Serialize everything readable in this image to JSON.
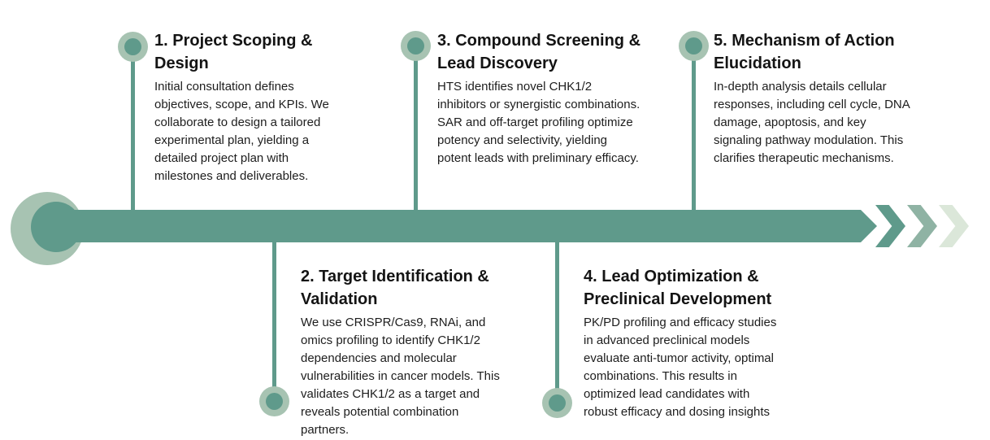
{
  "colors": {
    "accent_dark": "#5f9a8b",
    "accent_light": "#a7c3b2",
    "chevron_mid": "#8fb3a4",
    "chevron_pale": "#dbe7d9",
    "text": "#1d1d1d"
  },
  "steps": [
    {
      "id": 1,
      "position": "above-timeline",
      "title": "1. Project Scoping &\nDesign",
      "description": "Initial consultation defines\nobjectives, scope, and KPIs. We\ncollaborate to design a tailored\nexperimental plan, yielding a\ndetailed project plan with\nmilestones and deliverables."
    },
    {
      "id": 2,
      "position": "below-timeline",
      "title": "2. Target Identification &\nValidation",
      "description": "We use CRISPR/Cas9, RNAi, and\nomics profiling to identify CHK1/2\ndependencies and molecular\nvulnerabilities in cancer models. This\nvalidates CHK1/2 as a target and\nreveals potential combination\npartners."
    },
    {
      "id": 3,
      "position": "above-timeline",
      "title": "3. Compound Screening &\nLead Discovery",
      "description": "HTS identifies novel CHK1/2\ninhibitors or synergistic combinations.\nSAR and off-target profiling optimize\npotency and selectivity, yielding\npotent leads with preliminary efficacy."
    },
    {
      "id": 4,
      "position": "below-timeline",
      "title": "4. Lead Optimization &\nPreclinical Development",
      "description": "PK/PD profiling and efficacy studies\nin advanced preclinical models\nevaluate anti-tumor activity, optimal\ncombinations. This results in\noptimized lead candidates with\nrobust efficacy and dosing insights"
    },
    {
      "id": 5,
      "position": "above-timeline",
      "title": "5. Mechanism of Action\nElucidation",
      "description": "In-depth analysis details cellular\nresponses, including cell cycle, DNA\ndamage, apoptosis, and key\nsignaling pathway modulation. This\nclarifies therapeutic mechanisms."
    }
  ]
}
